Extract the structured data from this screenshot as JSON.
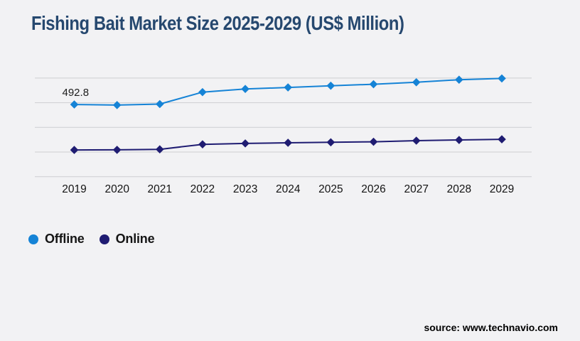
{
  "page": {
    "background": "#f2f2f4",
    "source_credit": "source: www.technavio.com"
  },
  "chart": {
    "title": "Fishing Bait Market Size 2025-2029 (US$ Million)"
  },
  "legend": [
    {
      "label": "Offline",
      "color": "#1583d6"
    },
    {
      "label": "Online",
      "color": "#1f1c72"
    }
  ],
  "chart_data": {
    "type": "line",
    "title": "Fishing Bait Market Size 2025-2029 (US$ Million)",
    "units": "US$ Million",
    "x": [
      "2019",
      "2020",
      "2021",
      "2022",
      "2023",
      "2024",
      "2025",
      "2026",
      "2027",
      "2028",
      "2029"
    ],
    "series": [
      {
        "name": "Offline",
        "color": "#1583d6",
        "marker": "diamond",
        "values": [
          492.8,
          490.5,
          494.5,
          543.0,
          556.0,
          562.0,
          569.0,
          575.0,
          583.0,
          593.5,
          598.5
        ]
      },
      {
        "name": "Online",
        "color": "#1f1c72",
        "marker": "diamond",
        "values": [
          308.5,
          309.0,
          311.0,
          331.0,
          335.0,
          337.5,
          339.5,
          341.5,
          346.0,
          349.0,
          351.5
        ]
      }
    ],
    "data_labels": [
      {
        "series": "Offline",
        "x": "2019",
        "text": "492.8"
      }
    ],
    "xlabel": "",
    "ylabel": "",
    "ylim": [
      200,
      640
    ],
    "gridlines": [
      200,
      300,
      400,
      500,
      600
    ],
    "grid": "horizontal-only",
    "y_axis_labels_visible": false,
    "legend_position": "bottom-left",
    "colors": {
      "gridline": "#cdced1",
      "axis_text": "#141414",
      "title_text": "#26486f"
    }
  }
}
